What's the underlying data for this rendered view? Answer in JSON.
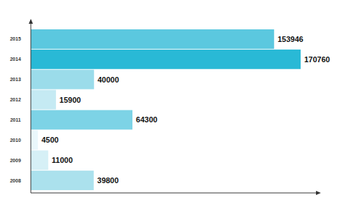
{
  "chart_data": {
    "type": "bar",
    "orientation": "horizontal",
    "categories": [
      "2008",
      "2009",
      "2010",
      "2011",
      "2012",
      "2013",
      "2014",
      "2015"
    ],
    "values": [
      39800,
      11000,
      4500,
      64300,
      15900,
      40000,
      170760,
      153946
    ],
    "colors": [
      "#abe1ed",
      "#d6f0f6",
      "#eaf7fb",
      "#7dd3e6",
      "#c5eaf3",
      "#9bdcea",
      "#29b9d6",
      "#5bc8df"
    ],
    "xlim": [
      0,
      180000
    ],
    "tick_labels": "y",
    "data_labels": true,
    "grid": false
  }
}
